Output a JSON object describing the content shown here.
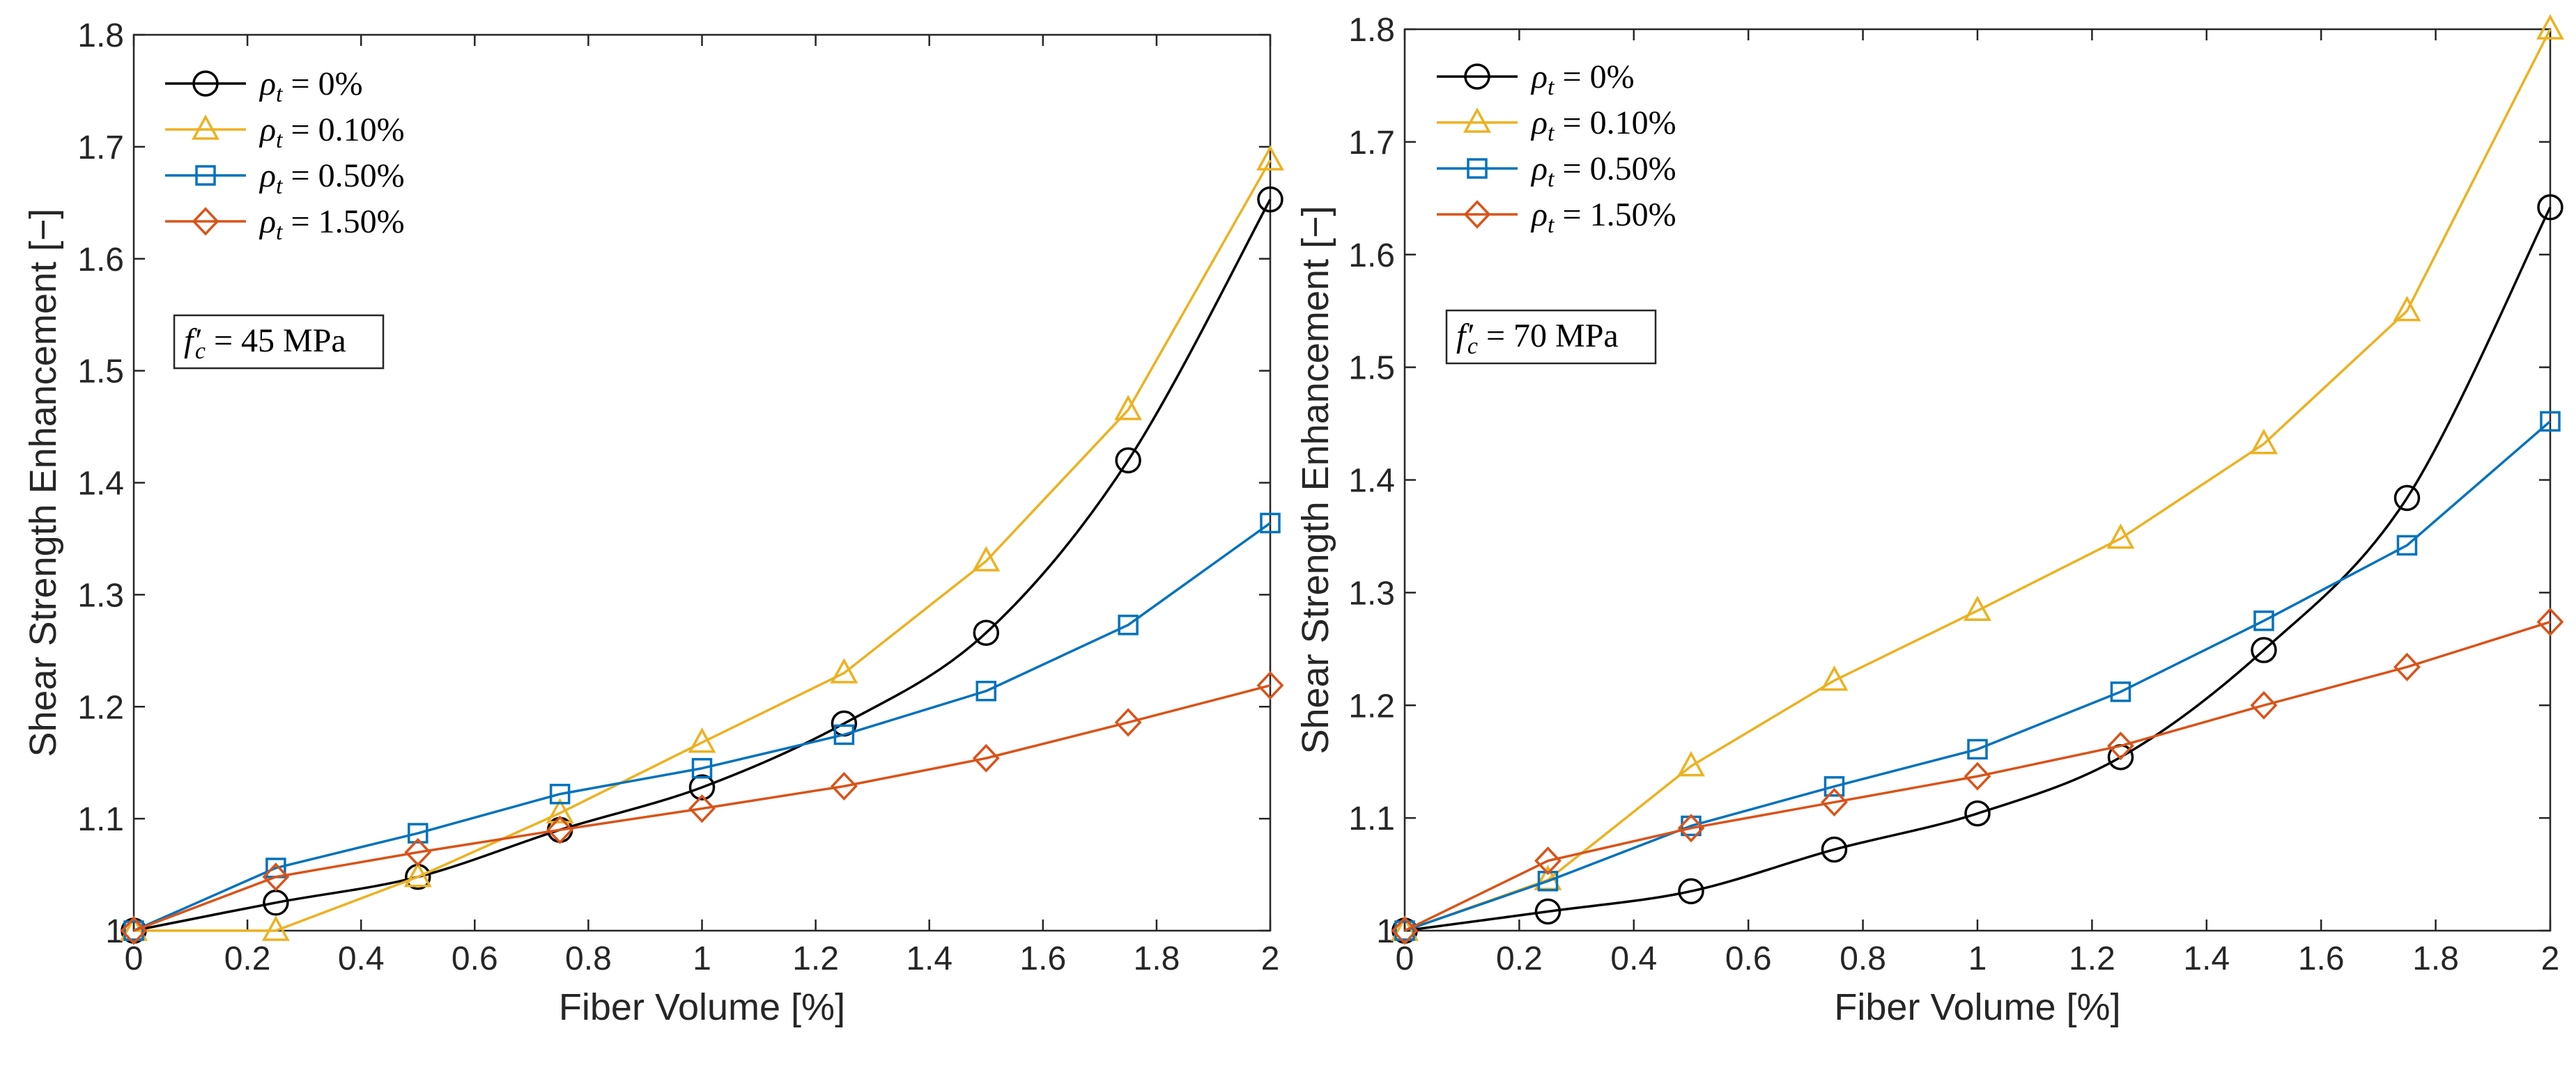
{
  "chart_data": [
    {
      "type": "line",
      "annotation": {
        "symbol": "f′",
        "sub": "c",
        "eq": " = ",
        "value": "45",
        "unit": " MPa"
      },
      "xlabel": "Fiber Volume [%]",
      "ylabel": "Shear Strength Enhancement [−]",
      "xlim": [
        0,
        2
      ],
      "ylim": [
        1,
        1.8
      ],
      "xticks": [
        "0",
        "0.2",
        "0.4",
        "0.6",
        "0.8",
        "1",
        "1.2",
        "1.4",
        "1.6",
        "1.8",
        "2"
      ],
      "yticks": [
        "1",
        "1.1",
        "1.2",
        "1.3",
        "1.4",
        "1.5",
        "1.6",
        "1.7",
        "1.8"
      ],
      "x": [
        0,
        0.25,
        0.5,
        0.75,
        1.0,
        1.25,
        1.5,
        1.75,
        2.0
      ],
      "legend_position": "top-left",
      "series": [
        {
          "name": "ρt = 0%",
          "sym": "ρ",
          "sub": "t",
          "eq": " = ",
          "val": "0%",
          "color": "#000000",
          "marker": "circle",
          "smooth": true,
          "values": [
            1.0,
            1.025,
            1.048,
            1.09,
            1.128,
            1.185,
            1.266,
            1.42,
            1.653
          ]
        },
        {
          "name": "ρt = 0.10%",
          "sym": "ρ",
          "sub": "t",
          "eq": " = ",
          "val": "0.10%",
          "color": "#EDB120",
          "marker": "triangle",
          "smooth": false,
          "values": [
            1.0,
            1.0,
            1.048,
            1.105,
            1.168,
            1.23,
            1.33,
            1.465,
            1.688
          ]
        },
        {
          "name": "ρt = 0.50%",
          "sym": "ρ",
          "sub": "t",
          "eq": " = ",
          "val": "0.50%",
          "color": "#0072BD",
          "marker": "square",
          "smooth": false,
          "values": [
            1.0,
            1.056,
            1.087,
            1.122,
            1.145,
            1.175,
            1.214,
            1.273,
            1.364
          ]
        },
        {
          "name": "ρt = 1.50%",
          "sym": "ρ",
          "sub": "t",
          "eq": " = ",
          "val": "1.50%",
          "color": "#D95319",
          "marker": "diamond",
          "smooth": false,
          "values": [
            1.0,
            1.048,
            1.07,
            1.09,
            1.109,
            1.129,
            1.154,
            1.186,
            1.219
          ]
        }
      ]
    },
    {
      "type": "line",
      "annotation": {
        "symbol": "f′",
        "sub": "c",
        "eq": " = ",
        "value": "70",
        "unit": " MPa"
      },
      "xlabel": "Fiber Volume [%]",
      "ylabel": "Shear Strength Enhancement [−]",
      "xlim": [
        0,
        2
      ],
      "ylim": [
        1,
        1.8
      ],
      "xticks": [
        "0",
        "0.2",
        "0.4",
        "0.6",
        "0.8",
        "1",
        "1.2",
        "1.4",
        "1.6",
        "1.8",
        "2"
      ],
      "yticks": [
        "1",
        "1.1",
        "1.2",
        "1.3",
        "1.4",
        "1.5",
        "1.6",
        "1.7",
        "1.8"
      ],
      "x": [
        0,
        0.25,
        0.5,
        0.75,
        1.0,
        1.25,
        1.5,
        1.75,
        2.0
      ],
      "legend_position": "top-left",
      "series": [
        {
          "name": "ρt = 0%",
          "sym": "ρ",
          "sub": "t",
          "eq": " = ",
          "val": "0%",
          "color": "#000000",
          "marker": "circle",
          "smooth": true,
          "values": [
            1.0,
            1.017,
            1.035,
            1.072,
            1.104,
            1.154,
            1.249,
            1.384,
            1.642
          ]
        },
        {
          "name": "ρt = 0.10%",
          "sym": "ρ",
          "sub": "t",
          "eq": " = ",
          "val": "0.10%",
          "color": "#EDB120",
          "marker": "triangle",
          "smooth": false,
          "values": [
            1.0,
            1.045,
            1.146,
            1.222,
            1.284,
            1.348,
            1.432,
            1.55,
            1.8
          ]
        },
        {
          "name": "ρt = 0.50%",
          "sym": "ρ",
          "sub": "t",
          "eq": " = ",
          "val": "0.50%",
          "color": "#0072BD",
          "marker": "square",
          "smooth": false,
          "values": [
            1.0,
            1.044,
            1.093,
            1.128,
            1.161,
            1.212,
            1.275,
            1.342,
            1.452
          ]
        },
        {
          "name": "ρt = 1.50%",
          "sym": "ρ",
          "sub": "t",
          "eq": " = ",
          "val": "1.50%",
          "color": "#D95319",
          "marker": "diamond",
          "smooth": false,
          "values": [
            1.0,
            1.062,
            1.091,
            1.114,
            1.137,
            1.164,
            1.2,
            1.234,
            1.274
          ]
        }
      ]
    }
  ]
}
